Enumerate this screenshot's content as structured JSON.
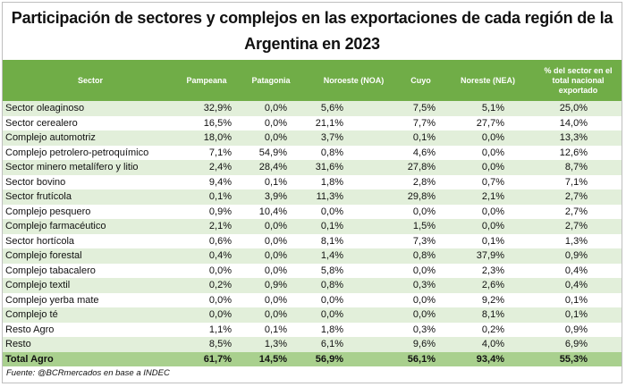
{
  "title": "Participación de sectores y complejos en las exportaciones de cada región de la Argentina en 2023",
  "table": {
    "header": [
      "Sector",
      "Pampeana",
      "Patagonia",
      "Noroeste (NOA)",
      "Cuyo",
      "Noreste (NEA)",
      "% del sector en el total nacional exportado"
    ],
    "rows": [
      [
        "Sector oleaginoso",
        "32,9%",
        "0,0%",
        "5,6%",
        "7,5%",
        "5,1%",
        "25,0%"
      ],
      [
        "Sector cerealero",
        "16,5%",
        "0,0%",
        "21,1%",
        "7,7%",
        "27,7%",
        "14,0%"
      ],
      [
        "Complejo automotriz",
        "18,0%",
        "0,0%",
        "3,7%",
        "0,1%",
        "0,0%",
        "13,3%"
      ],
      [
        "Complejo petrolero-petroquímico",
        "7,1%",
        "54,9%",
        "0,8%",
        "4,6%",
        "0,0%",
        "12,6%"
      ],
      [
        "Sector minero metalífero y litio",
        "2,4%",
        "28,4%",
        "31,6%",
        "27,8%",
        "0,0%",
        "8,7%"
      ],
      [
        "Sector bovino",
        "9,4%",
        "0,1%",
        "1,8%",
        "2,8%",
        "0,7%",
        "7,1%"
      ],
      [
        "Sector frutícola",
        "0,1%",
        "3,9%",
        "11,3%",
        "29,8%",
        "2,1%",
        "2,7%"
      ],
      [
        "Complejo pesquero",
        "0,9%",
        "10,4%",
        "0,0%",
        "0,0%",
        "0,0%",
        "2,7%"
      ],
      [
        "Complejo farmacéutico",
        "2,1%",
        "0,0%",
        "0,1%",
        "1,5%",
        "0,0%",
        "2,7%"
      ],
      [
        "Sector hortícola",
        "0,6%",
        "0,0%",
        "8,1%",
        "7,3%",
        "0,1%",
        "1,3%"
      ],
      [
        "Complejo forestal",
        "0,4%",
        "0,0%",
        "1,4%",
        "0,8%",
        "37,9%",
        "0,9%"
      ],
      [
        "Complejo tabacalero",
        "0,0%",
        "0,0%",
        "5,8%",
        "0,0%",
        "2,3%",
        "0,4%"
      ],
      [
        "Complejo textil",
        "0,2%",
        "0,9%",
        "0,8%",
        "0,3%",
        "2,6%",
        "0,4%"
      ],
      [
        "Complejo yerba mate",
        "0,0%",
        "0,0%",
        "0,0%",
        "0,0%",
        "9,2%",
        "0,1%"
      ],
      [
        "Complejo té",
        "0,0%",
        "0,0%",
        "0,0%",
        "0,0%",
        "8,1%",
        "0,1%"
      ],
      [
        "Resto Agro",
        "1,1%",
        "0,1%",
        "1,8%",
        "0,3%",
        "0,2%",
        "0,9%"
      ],
      [
        "Resto",
        "8,5%",
        "1,3%",
        "6,1%",
        "9,6%",
        "4,0%",
        "6,9%"
      ]
    ],
    "total": [
      "Total Agro",
      "61,7%",
      "14,5%",
      "56,9%",
      "56,1%",
      "93,4%",
      "55,3%"
    ]
  },
  "footer": "Fuente: @BCRmercados en base a INDEC"
}
